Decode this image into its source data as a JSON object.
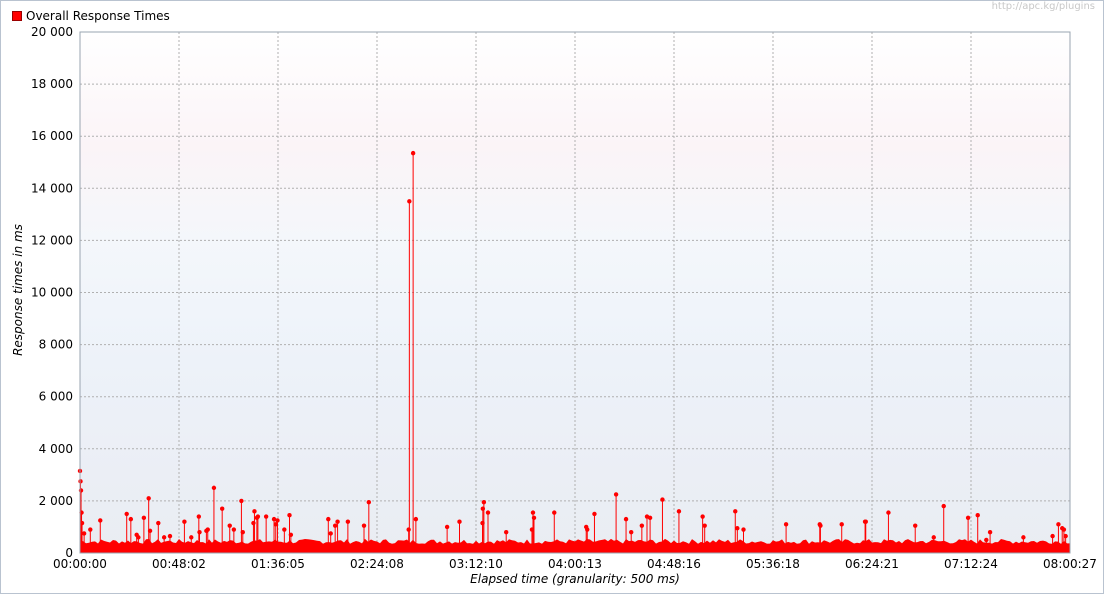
{
  "watermark": "http://apc.kg/plugins",
  "chart_data": {
    "type": "scatter",
    "title": "",
    "legend": {
      "position": "top-left",
      "entries": [
        "Overall Response Times"
      ]
    },
    "xlabel": "Elapsed time (granularity: 500 ms)",
    "ylabel": "Response times in ms",
    "ylim": [
      0,
      20000
    ],
    "grid": true,
    "y_ticks": [
      "0",
      "2 000",
      "4 000",
      "6 000",
      "8 000",
      "10 000",
      "12 000",
      "14 000",
      "16 000",
      "18 000",
      "20 000"
    ],
    "x_ticks": [
      "00:00:00",
      "00:48:02",
      "01:36:05",
      "02:24:08",
      "03:12:10",
      "04:00:13",
      "04:48:16",
      "05:36:18",
      "06:24:21",
      "07:12:24",
      "08:00:27"
    ],
    "xlim_seconds": [
      0,
      28827
    ],
    "colors": {
      "series": "#ff0000"
    },
    "series": [
      {
        "name": "Overall Response Times",
        "baseline_ms": 350,
        "x_seconds": [
          0,
          15,
          30,
          45,
          60,
          120,
          300,
          590,
          1360,
          1480,
          1650,
          1700,
          1860,
          2000,
          2040,
          2280,
          2450,
          2620,
          3040,
          3240,
          3460,
          3480,
          3680,
          3720,
          3900,
          4140,
          4360,
          4480,
          4700,
          4740,
          5050,
          5080,
          5150,
          5180,
          5420,
          5650,
          5700,
          5750,
          5950,
          6100,
          6140,
          7230,
          7300,
          7430,
          7500,
          7800,
          8270,
          8410,
          9570,
          9590,
          9700,
          9780,
          10690,
          11050,
          11720,
          11730,
          11760,
          11880,
          12410,
          13160,
          13190,
          13220,
          13810,
          14740,
          14770,
          14980,
          15610,
          15900,
          16050,
          16360,
          16510,
          16600,
          16960,
          17440,
          18130,
          18190,
          19080,
          19140,
          19320,
          20560,
          21540,
          21560,
          22180,
          22860,
          22880,
          23540,
          24320,
          24860,
          25150,
          25860,
          26140,
          26390,
          26500,
          27470,
          28320,
          28490,
          28600,
          28650,
          28700
        ],
        "y_ms": [
          3150,
          2750,
          2400,
          1550,
          1150,
          750,
          900,
          1250,
          1500,
          1300,
          700,
          600,
          1350,
          2100,
          850,
          1150,
          600,
          650,
          1200,
          600,
          1400,
          800,
          850,
          900,
          2500,
          1700,
          1050,
          900,
          2000,
          800,
          1150,
          1600,
          1350,
          1400,
          1400,
          1300,
          1100,
          1250,
          900,
          1450,
          700,
          1300,
          750,
          1050,
          1200,
          1200,
          1050,
          1950,
          900,
          13500,
          15350,
          1300,
          1000,
          1200,
          1150,
          1700,
          1950,
          1550,
          800,
          900,
          1550,
          1350,
          1550,
          1000,
          900,
          1500,
          2250,
          1300,
          800,
          1050,
          1400,
          1350,
          2050,
          1600,
          1400,
          1050,
          1600,
          950,
          900,
          1100,
          1100,
          1050,
          1100,
          1200,
          1200,
          1550,
          1050,
          600,
          1800,
          1350,
          1450,
          500,
          800,
          600,
          650,
          1100,
          950,
          900,
          650
        ]
      }
    ]
  }
}
